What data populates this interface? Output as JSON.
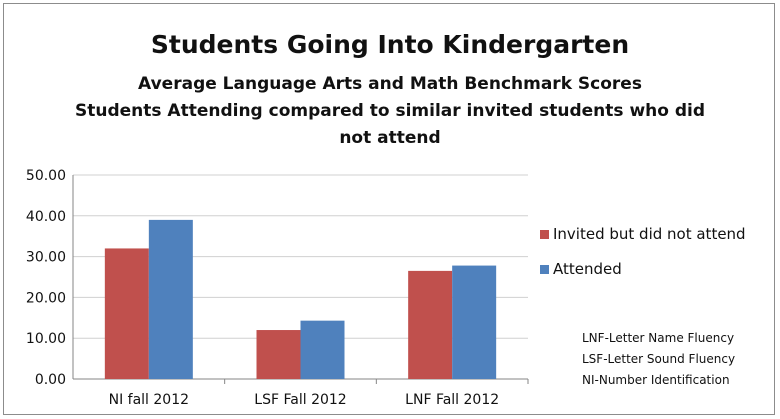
{
  "chart_data": {
    "type": "bar",
    "title": "Students Going Into Kindergarten",
    "subtitle_lines": [
      "Average Language Arts and Math Benchmark Scores",
      "Students Attending compared to similar invited students who did",
      "not attend"
    ],
    "categories": [
      "NI fall 2012",
      "LSF Fall 2012",
      "LNF Fall 2012"
    ],
    "series": [
      {
        "name": "Invited but did not attend",
        "values": [
          32.0,
          12.0,
          26.5
        ],
        "color": "#c0504d"
      },
      {
        "name": "Attended",
        "values": [
          39.0,
          14.3,
          27.8
        ],
        "color": "#4f81bd"
      }
    ],
    "y_ticks": [
      "0.00",
      "10.00",
      "20.00",
      "30.00",
      "40.00",
      "50.00"
    ],
    "ylim": [
      0,
      50
    ],
    "grid": true,
    "legend_position": "right",
    "notes": [
      "LNF-Letter Name Fluency",
      "LSF-Letter Sound Fluency",
      "NI-Number Identification"
    ]
  }
}
